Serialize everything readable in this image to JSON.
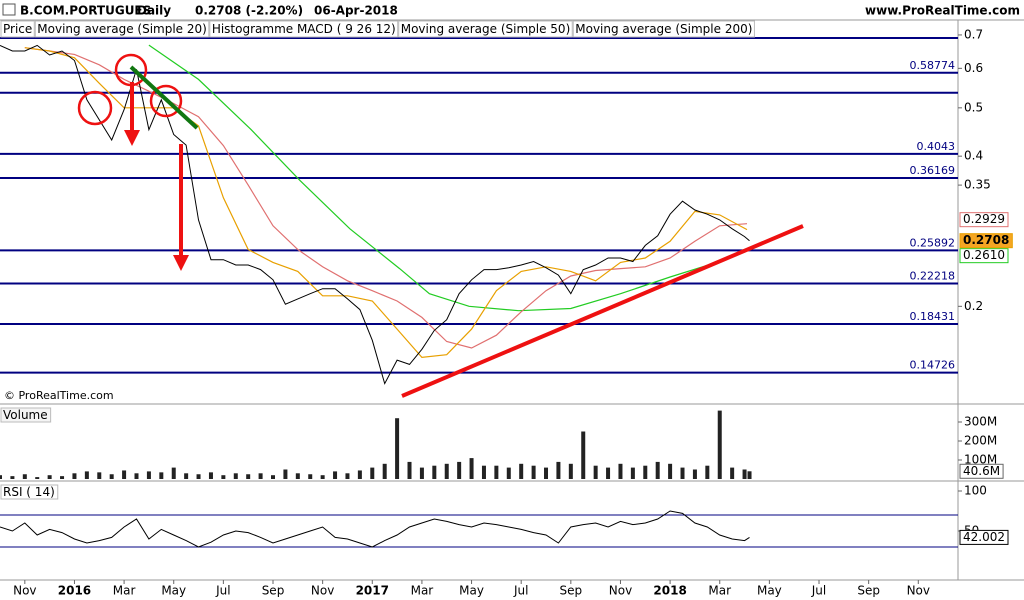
{
  "header": {
    "symbol": "B.COM.PORTUGUES",
    "period": "Daily",
    "quote": "0.2708 (-2.20%)",
    "date": "06-Apr-2018",
    "site": "www.ProRealTime.com"
  },
  "chart_data": [
    {
      "type": "line",
      "log_scale": true,
      "copyright": "© ProRealTime.com",
      "ylim": [
        0.128,
        0.75
      ],
      "yticks": [
        0.7,
        0.6,
        0.5,
        0.4,
        0.35,
        0.2
      ],
      "levels": [
        0.58774,
        0.4043,
        0.36169,
        0.25892,
        0.22218,
        0.18431,
        0.14726
      ],
      "level_color": "#000080",
      "unlabeled_levels": [
        0.69,
        0.536
      ],
      "indicators": [
        "Histogramme MACD ( 9 26 12)"
      ],
      "series": [
        {
          "name": "Price",
          "color": "#000000",
          "x": [
            -1,
            -0.5,
            0,
            0.5,
            1,
            1.5,
            2,
            2.5,
            3,
            3.5,
            4,
            4.5,
            5,
            5.5,
            6,
            6.5,
            7,
            7.5,
            8,
            8.5,
            9,
            9.5,
            10,
            10.5,
            11,
            11.5,
            12,
            12.5,
            13,
            13.5,
            14,
            14.5,
            15,
            15.5,
            16,
            16.5,
            17,
            17.5,
            18,
            18.5,
            19,
            19.5,
            20,
            20.5,
            21,
            21.5,
            22,
            22.5,
            23,
            23.5,
            24,
            24.5,
            25,
            25.5,
            26,
            26.5,
            27,
            27.5,
            28,
            28.5,
            29,
            29.2
          ],
          "values": [
            0.667,
            0.65,
            0.65,
            0.667,
            0.638,
            0.65,
            0.622,
            0.519,
            0.473,
            0.431,
            0.496,
            0.597,
            0.452,
            0.519,
            0.442,
            0.421,
            0.298,
            0.248,
            0.248,
            0.242,
            0.242,
            0.237,
            0.226,
            0.202,
            0.207,
            0.212,
            0.217,
            0.217,
            0.207,
            0.197,
            0.171,
            0.14,
            0.156,
            0.153,
            0.164,
            0.179,
            0.188,
            0.212,
            0.226,
            0.237,
            0.237,
            0.239,
            0.242,
            0.246,
            0.239,
            0.231,
            0.212,
            0.237,
            0.242,
            0.25,
            0.25,
            0.246,
            0.265,
            0.277,
            0.306,
            0.325,
            0.312,
            0.306,
            0.298,
            0.286,
            0.276,
            0.2708
          ]
        },
        {
          "name": "Moving average (Simple 20)",
          "color": "#e8a000",
          "x": [
            0,
            1,
            2,
            3,
            4,
            5,
            6,
            7,
            8,
            9,
            10,
            11,
            12,
            13,
            14,
            15,
            16,
            17,
            18,
            19,
            20,
            21,
            22,
            23,
            24,
            25,
            26,
            27,
            28,
            29.1
          ],
          "values": [
            0.66,
            0.65,
            0.63,
            0.56,
            0.5,
            0.5,
            0.5,
            0.46,
            0.33,
            0.26,
            0.245,
            0.235,
            0.21,
            0.21,
            0.205,
            0.18,
            0.158,
            0.16,
            0.18,
            0.215,
            0.235,
            0.24,
            0.235,
            0.225,
            0.245,
            0.25,
            0.27,
            0.31,
            0.305,
            0.285
          ]
        },
        {
          "name": "Moving average (Simple 50)",
          "color": "#e07070",
          "x": [
            0,
            1,
            2,
            3,
            4,
            5,
            6,
            7,
            8,
            9,
            10,
            11,
            12,
            13,
            14,
            15,
            16,
            17,
            18,
            19,
            20,
            21,
            22,
            23,
            24,
            25,
            26,
            27,
            28,
            29.1
          ],
          "values": [
            0.66,
            0.65,
            0.64,
            0.61,
            0.57,
            0.54,
            0.51,
            0.48,
            0.42,
            0.35,
            0.29,
            0.26,
            0.24,
            0.225,
            0.215,
            0.205,
            0.19,
            0.17,
            0.165,
            0.175,
            0.195,
            0.215,
            0.23,
            0.236,
            0.238,
            0.24,
            0.25,
            0.27,
            0.29,
            0.2929
          ]
        },
        {
          "name": "Moving average (Simple 200)",
          "color": "#22cc22",
          "x": [
            5,
            7,
            9.1,
            11.1,
            13.1,
            15.1,
            16.3,
            17.9,
            19.9,
            22,
            24,
            26,
            28,
            29.1
          ],
          "values": [
            0.668,
            0.57,
            0.453,
            0.357,
            0.286,
            0.238,
            0.212,
            0.2,
            0.196,
            0.198,
            0.212,
            0.229,
            0.246,
            0.261
          ],
          "last_label": "0.2610"
        }
      ]
    },
    {
      "type": "bar",
      "title": "Volume",
      "color": "#222222",
      "x": [
        -1,
        -0.5,
        0,
        0.5,
        1,
        1.5,
        2,
        2.5,
        3,
        3.5,
        4,
        4.5,
        5,
        5.5,
        6,
        6.5,
        7,
        7.5,
        8,
        8.5,
        9,
        9.5,
        10,
        10.5,
        11,
        11.5,
        12,
        12.5,
        13,
        13.5,
        14,
        14.5,
        15,
        15.5,
        16,
        16.5,
        17,
        17.5,
        18,
        18.5,
        19,
        19.5,
        20,
        20.5,
        21,
        21.5,
        22,
        22.5,
        23,
        23.5,
        24,
        24.5,
        25,
        25.5,
        26,
        26.5,
        27,
        27.5,
        28,
        28.5,
        29,
        29.2
      ],
      "values": [
        20,
        15,
        25,
        10,
        20,
        15,
        30,
        40,
        35,
        25,
        45,
        30,
        40,
        35,
        60,
        30,
        25,
        35,
        20,
        30,
        25,
        30,
        20,
        50,
        30,
        25,
        20,
        40,
        30,
        45,
        60,
        80,
        320,
        90,
        60,
        70,
        80,
        90,
        110,
        70,
        70,
        60,
        80,
        70,
        60,
        90,
        80,
        250,
        70,
        60,
        80,
        60,
        70,
        90,
        80,
        60,
        50,
        70,
        360,
        60,
        50,
        40.6
      ],
      "last_label": "40.6M",
      "ylim": [
        0,
        379
      ],
      "yticks": [
        {
          "value": 300,
          "label": "300M"
        },
        {
          "value": 200,
          "label": "200M"
        },
        {
          "value": 100,
          "label": "100M"
        }
      ]
    },
    {
      "type": "line",
      "title": "RSI ( 14)",
      "color": "#000000",
      "x": [
        -1,
        -0.5,
        0,
        0.5,
        1,
        1.5,
        2,
        2.5,
        3,
        3.5,
        4,
        4.5,
        5,
        5.5,
        6,
        6.5,
        7,
        7.5,
        8,
        8.5,
        9,
        9.5,
        10,
        10.5,
        11,
        11.5,
        12,
        12.5,
        13,
        13.5,
        14,
        14.5,
        15,
        15.5,
        16,
        16.5,
        17,
        17.5,
        18,
        18.5,
        19,
        19.5,
        20,
        20.5,
        21,
        21.5,
        22,
        22.5,
        23,
        23.5,
        24,
        24.5,
        25,
        25.5,
        26,
        26.5,
        27,
        27.5,
        28,
        28.5,
        29,
        29.2
      ],
      "values": [
        55,
        50,
        60,
        45,
        52,
        48,
        40,
        35,
        38,
        42,
        55,
        65,
        40,
        52,
        45,
        38,
        30,
        36,
        45,
        50,
        48,
        42,
        35,
        40,
        45,
        50,
        55,
        42,
        40,
        35,
        30,
        38,
        45,
        55,
        60,
        65,
        62,
        58,
        55,
        60,
        58,
        55,
        52,
        48,
        45,
        35,
        55,
        58,
        60,
        55,
        62,
        58,
        60,
        65,
        75,
        72,
        60,
        55,
        45,
        40,
        38,
        42.002
      ],
      "levels": [
        70,
        30
      ],
      "level_color": "#000080",
      "ylim": [
        -8.75,
        108.75
      ],
      "yticks": [
        100,
        50
      ],
      "xlim": [
        -1,
        37.6
      ],
      "xticks": [
        {
          "value": 0,
          "label": "Nov"
        },
        {
          "value": 2,
          "label": "2016"
        },
        {
          "value": 4,
          "label": "Mar"
        },
        {
          "value": 6,
          "label": "May"
        },
        {
          "value": 8,
          "label": "Jul"
        },
        {
          "value": 10,
          "label": "Sep"
        },
        {
          "value": 12,
          "label": "Nov"
        },
        {
          "value": 14,
          "label": "2017"
        },
        {
          "value": 16,
          "label": "Mar"
        },
        {
          "value": 18,
          "label": "May"
        },
        {
          "value": 20,
          "label": "Jul"
        },
        {
          "value": 22,
          "label": "Sep"
        },
        {
          "value": 24,
          "label": "Nov"
        },
        {
          "value": 26,
          "label": "2018"
        },
        {
          "value": 28,
          "label": "Mar"
        },
        {
          "value": 30,
          "label": "May"
        },
        {
          "value": 32,
          "label": "Jul"
        },
        {
          "value": 34,
          "label": "Sep"
        },
        {
          "value": 36,
          "label": "Nov"
        }
      ]
    }
  ]
}
